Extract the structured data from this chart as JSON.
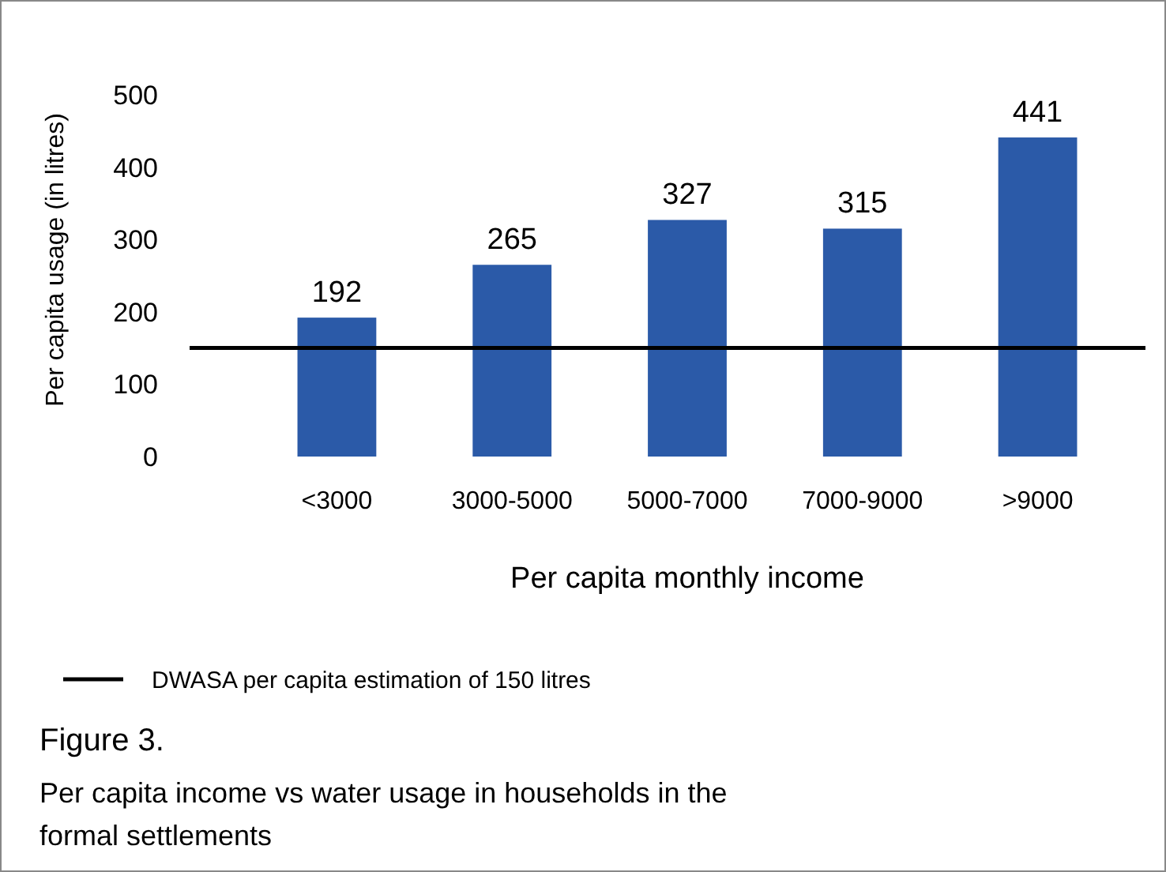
{
  "chart_data": {
    "type": "bar",
    "xlabel": "Per capita monthly income",
    "ylabel": "Per capita usage (in litres)",
    "categories": [
      "<3000",
      "3000-5000",
      "5000-7000",
      "7000-9000",
      ">9000"
    ],
    "values": [
      192,
      265,
      327,
      315,
      441
    ],
    "color": "#2b5aa8",
    "data_labels": true,
    "ylim": [
      0,
      500
    ],
    "yticks": [
      0,
      100,
      200,
      300,
      400,
      500
    ],
    "grid": false,
    "legend": "bottom left",
    "ref_lines": [
      {
        "axis": "y",
        "value": 150,
        "label": "DWASA per capita estimation of 150 litres",
        "color": "#000000"
      }
    ],
    "annotations": [
      "Figure 3.",
      "Per capita income vs water usage in households in the formal settlements"
    ]
  }
}
